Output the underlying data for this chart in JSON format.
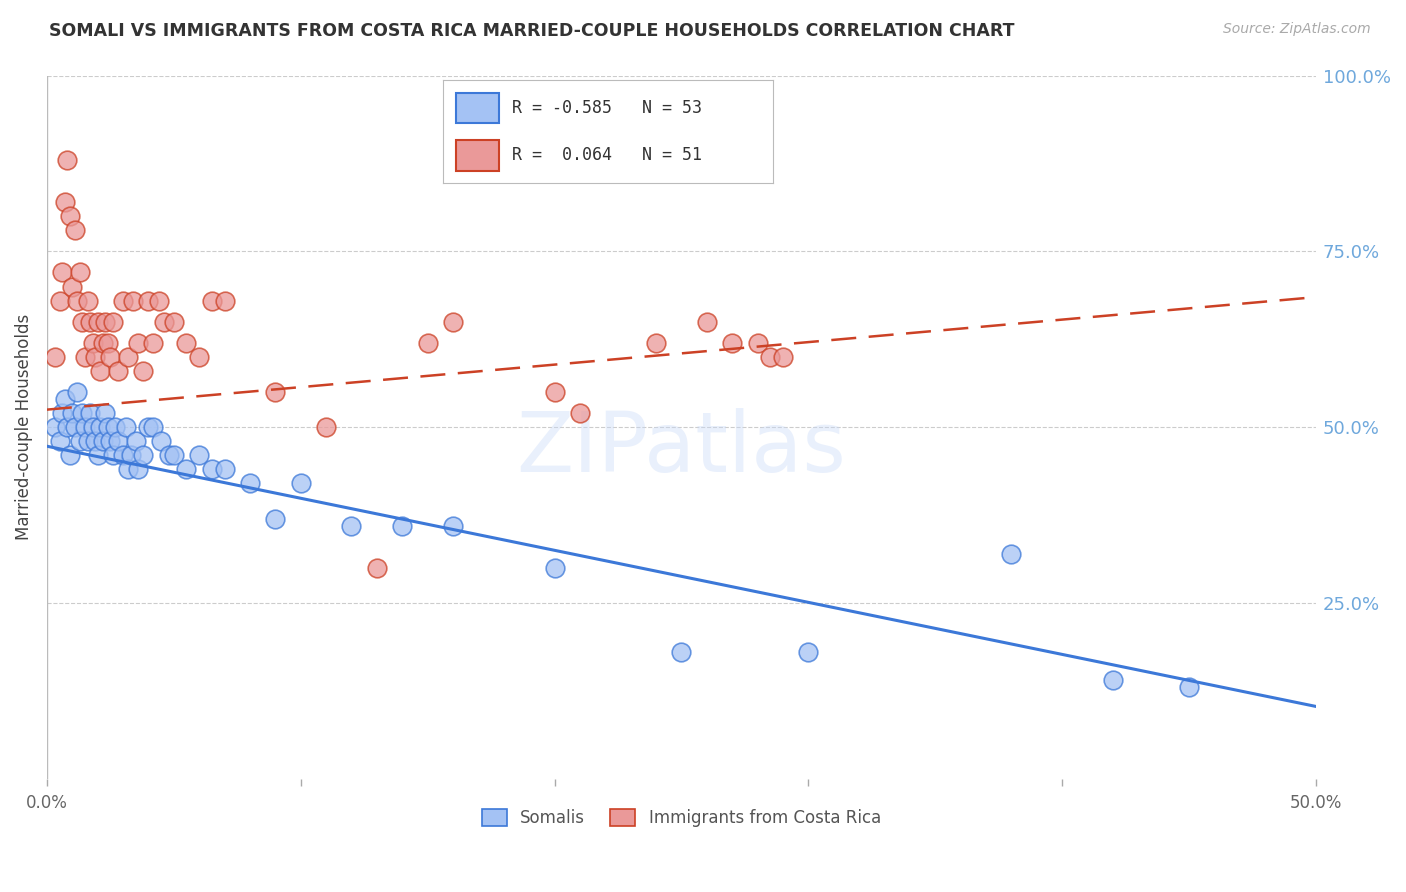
{
  "title": "SOMALI VS IMMIGRANTS FROM COSTA RICA MARRIED-COUPLE HOUSEHOLDS CORRELATION CHART",
  "source": "Source: ZipAtlas.com",
  "ylabel": "Married-couple Households",
  "right_yticks": [
    "100.0%",
    "75.0%",
    "50.0%",
    "25.0%"
  ],
  "right_ytick_vals": [
    1.0,
    0.75,
    0.5,
    0.25
  ],
  "somali_color": "#a4c2f4",
  "costa_rica_color": "#ea9999",
  "somali_line_color": "#3c78d8",
  "costa_rica_line_color": "#cc4125",
  "background_color": "#ffffff",
  "grid_color": "#cccccc",
  "watermark": "ZIPatlas",
  "xlim": [
    0.0,
    0.5
  ],
  "ylim": [
    0.0,
    1.0
  ],
  "somali_x": [
    0.003,
    0.005,
    0.006,
    0.007,
    0.008,
    0.009,
    0.01,
    0.011,
    0.012,
    0.013,
    0.014,
    0.015,
    0.016,
    0.017,
    0.018,
    0.019,
    0.02,
    0.021,
    0.022,
    0.023,
    0.024,
    0.025,
    0.026,
    0.027,
    0.028,
    0.03,
    0.031,
    0.032,
    0.033,
    0.035,
    0.036,
    0.038,
    0.04,
    0.042,
    0.045,
    0.048,
    0.05,
    0.055,
    0.06,
    0.065,
    0.07,
    0.08,
    0.09,
    0.1,
    0.12,
    0.14,
    0.16,
    0.2,
    0.25,
    0.3,
    0.38,
    0.42,
    0.45
  ],
  "somali_y": [
    0.5,
    0.48,
    0.52,
    0.54,
    0.5,
    0.46,
    0.52,
    0.5,
    0.55,
    0.48,
    0.52,
    0.5,
    0.48,
    0.52,
    0.5,
    0.48,
    0.46,
    0.5,
    0.48,
    0.52,
    0.5,
    0.48,
    0.46,
    0.5,
    0.48,
    0.46,
    0.5,
    0.44,
    0.46,
    0.48,
    0.44,
    0.46,
    0.5,
    0.5,
    0.48,
    0.46,
    0.46,
    0.44,
    0.46,
    0.44,
    0.44,
    0.42,
    0.37,
    0.42,
    0.36,
    0.36,
    0.36,
    0.3,
    0.18,
    0.18,
    0.32,
    0.14,
    0.13
  ],
  "costa_rica_x": [
    0.003,
    0.005,
    0.006,
    0.007,
    0.008,
    0.009,
    0.01,
    0.011,
    0.012,
    0.013,
    0.014,
    0.015,
    0.016,
    0.017,
    0.018,
    0.019,
    0.02,
    0.021,
    0.022,
    0.023,
    0.024,
    0.025,
    0.026,
    0.028,
    0.03,
    0.032,
    0.034,
    0.036,
    0.038,
    0.04,
    0.042,
    0.044,
    0.046,
    0.05,
    0.055,
    0.06,
    0.065,
    0.07,
    0.09,
    0.11,
    0.13,
    0.15,
    0.16,
    0.2,
    0.21,
    0.24,
    0.26,
    0.27,
    0.28,
    0.285,
    0.29
  ],
  "costa_rica_y": [
    0.6,
    0.68,
    0.72,
    0.82,
    0.88,
    0.8,
    0.7,
    0.78,
    0.68,
    0.72,
    0.65,
    0.6,
    0.68,
    0.65,
    0.62,
    0.6,
    0.65,
    0.58,
    0.62,
    0.65,
    0.62,
    0.6,
    0.65,
    0.58,
    0.68,
    0.6,
    0.68,
    0.62,
    0.58,
    0.68,
    0.62,
    0.68,
    0.65,
    0.65,
    0.62,
    0.6,
    0.68,
    0.68,
    0.55,
    0.5,
    0.3,
    0.62,
    0.65,
    0.55,
    0.52,
    0.62,
    0.65,
    0.62,
    0.62,
    0.6,
    0.6
  ]
}
